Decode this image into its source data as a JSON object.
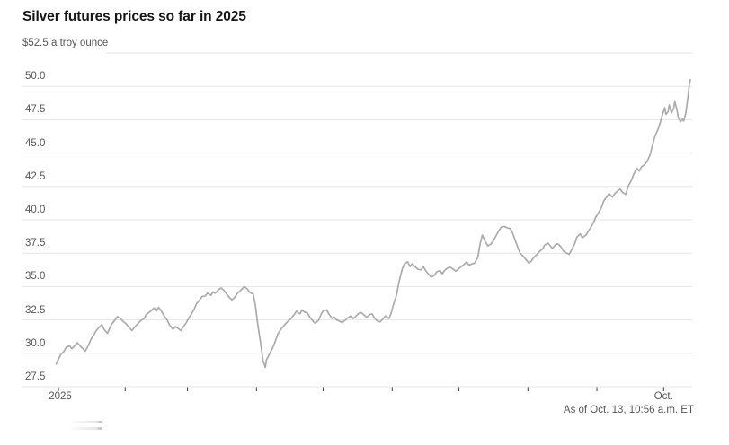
{
  "chart_data": {
    "type": "line",
    "title": "Silver futures prices so far in 2025",
    "unit_label": "$52.5 a troy ounce",
    "as_of": "As of Oct. 13, 10:56 a.m. ET",
    "ylabel": "price, $ a troy ounce",
    "ylim": [
      27.5,
      52.5
    ],
    "grid": true,
    "legend": false,
    "ytick_labels": [
      "27.5",
      "30.0",
      "32.5",
      "35.0",
      "37.5",
      "40.0",
      "42.5",
      "45.0",
      "47.5",
      "50.0"
    ],
    "ytick_top_value": 52.5,
    "x_axis": {
      "year_label": "2025",
      "end_label": "Oct.",
      "month_tick_days": [
        2,
        32,
        60,
        91,
        121,
        152,
        182,
        213,
        244,
        274
      ],
      "domain_days": [
        1,
        286
      ]
    },
    "colors": {
      "line": "#ababab",
      "grid": "#e4e4e4",
      "axis": "#dcdcdc",
      "tick": "#3c3c3c",
      "title": "#161616",
      "label": "#555555"
    },
    "series": [
      {
        "name": "Silver futures price",
        "points": [
          [
            1,
            29.2
          ],
          [
            2,
            29.55
          ],
          [
            3,
            29.9
          ],
          [
            4.5,
            30.15
          ],
          [
            5.5,
            30.45
          ],
          [
            7,
            30.55
          ],
          [
            8,
            30.35
          ],
          [
            9.5,
            30.6
          ],
          [
            10.5,
            30.8
          ],
          [
            11.5,
            30.6
          ],
          [
            13,
            30.35
          ],
          [
            14,
            30.15
          ],
          [
            15.5,
            30.6
          ],
          [
            16.5,
            31.0
          ],
          [
            18,
            31.4
          ],
          [
            19,
            31.7
          ],
          [
            20,
            31.9
          ],
          [
            21.5,
            32.15
          ],
          [
            22.5,
            31.8
          ],
          [
            24,
            31.5
          ],
          [
            25,
            31.85
          ],
          [
            26,
            32.2
          ],
          [
            27.5,
            32.5
          ],
          [
            28.5,
            32.75
          ],
          [
            30,
            32.6
          ],
          [
            31,
            32.4
          ],
          [
            32.5,
            32.2
          ],
          [
            34,
            31.9
          ],
          [
            35,
            31.7
          ],
          [
            36.5,
            32.0
          ],
          [
            37.5,
            32.2
          ],
          [
            39,
            32.45
          ],
          [
            40.5,
            32.6
          ],
          [
            41.5,
            32.9
          ],
          [
            43,
            33.1
          ],
          [
            44,
            33.25
          ],
          [
            45,
            33.4
          ],
          [
            46,
            33.15
          ],
          [
            47,
            33.45
          ],
          [
            48.5,
            33.1
          ],
          [
            49.5,
            32.8
          ],
          [
            51,
            32.45
          ],
          [
            52,
            32.1
          ],
          [
            53.5,
            31.8
          ],
          [
            54.5,
            32.0
          ],
          [
            55.5,
            31.9
          ],
          [
            57,
            31.7
          ],
          [
            58,
            31.95
          ],
          [
            59.5,
            32.3
          ],
          [
            60.5,
            32.6
          ],
          [
            62,
            33.0
          ],
          [
            63,
            33.3
          ],
          [
            64,
            33.7
          ],
          [
            65.5,
            34.0
          ],
          [
            66.5,
            34.25
          ],
          [
            68,
            34.3
          ],
          [
            69,
            34.5
          ],
          [
            70.5,
            34.35
          ],
          [
            71.5,
            34.6
          ],
          [
            72.5,
            34.5
          ],
          [
            74,
            34.75
          ],
          [
            75,
            34.9
          ],
          [
            76.5,
            34.7
          ],
          [
            77.5,
            34.45
          ],
          [
            79,
            34.15
          ],
          [
            80,
            34.0
          ],
          [
            81,
            34.15
          ],
          [
            82.5,
            34.5
          ],
          [
            83.5,
            34.65
          ],
          [
            85,
            34.9
          ],
          [
            85.5,
            35.0
          ],
          [
            87,
            34.8
          ],
          [
            88,
            34.55
          ],
          [
            89.5,
            34.45
          ],
          [
            90.5,
            33.6
          ],
          [
            91.5,
            32.3
          ],
          [
            93,
            30.6
          ],
          [
            94,
            29.4
          ],
          [
            95,
            28.95
          ],
          [
            95.5,
            29.5
          ],
          [
            97,
            30.0
          ],
          [
            98,
            30.3
          ],
          [
            99.5,
            30.9
          ],
          [
            100.5,
            31.4
          ],
          [
            102,
            31.8
          ],
          [
            103,
            32.0
          ],
          [
            104,
            32.2
          ],
          [
            105.5,
            32.45
          ],
          [
            106.5,
            32.6
          ],
          [
            108,
            32.9
          ],
          [
            109,
            33.15
          ],
          [
            110.5,
            32.95
          ],
          [
            111.5,
            33.25
          ],
          [
            112.5,
            33.1
          ],
          [
            114,
            33.0
          ],
          [
            115,
            32.7
          ],
          [
            116.5,
            32.4
          ],
          [
            117.5,
            32.25
          ],
          [
            119,
            32.5
          ],
          [
            120,
            32.9
          ],
          [
            121,
            33.2
          ],
          [
            122.5,
            33.25
          ],
          [
            123.5,
            32.95
          ],
          [
            125,
            32.6
          ],
          [
            126,
            32.7
          ],
          [
            127,
            32.5
          ],
          [
            128.5,
            32.4
          ],
          [
            129.5,
            32.3
          ],
          [
            131,
            32.5
          ],
          [
            132,
            32.65
          ],
          [
            133.5,
            32.8
          ],
          [
            134.5,
            32.6
          ],
          [
            135.5,
            32.75
          ],
          [
            137,
            33.0
          ],
          [
            138,
            33.05
          ],
          [
            139.5,
            32.85
          ],
          [
            140.5,
            32.7
          ],
          [
            142,
            32.9
          ],
          [
            143,
            32.95
          ],
          [
            144,
            32.65
          ],
          [
            145.5,
            32.4
          ],
          [
            146.5,
            32.35
          ],
          [
            148,
            32.6
          ],
          [
            149,
            32.8
          ],
          [
            150.5,
            32.6
          ],
          [
            151.5,
            33.0
          ],
          [
            152.5,
            33.6
          ],
          [
            154,
            34.4
          ],
          [
            155,
            35.3
          ],
          [
            156.5,
            36.3
          ],
          [
            157.5,
            36.7
          ],
          [
            159,
            36.85
          ],
          [
            160,
            36.5
          ],
          [
            161,
            36.7
          ],
          [
            162.5,
            36.45
          ],
          [
            163.5,
            36.3
          ],
          [
            165,
            36.25
          ],
          [
            166,
            36.5
          ],
          [
            167,
            36.2
          ],
          [
            168.5,
            35.9
          ],
          [
            169.5,
            35.7
          ],
          [
            171,
            35.85
          ],
          [
            172,
            36.1
          ],
          [
            173.5,
            36.2
          ],
          [
            174.5,
            35.95
          ],
          [
            175.5,
            36.2
          ],
          [
            177,
            36.4
          ],
          [
            178,
            36.45
          ],
          [
            179.5,
            36.3
          ],
          [
            180.5,
            36.15
          ],
          [
            182,
            36.35
          ],
          [
            183,
            36.5
          ],
          [
            184,
            36.6
          ],
          [
            185.5,
            36.85
          ],
          [
            186.5,
            36.6
          ],
          [
            188,
            36.7
          ],
          [
            189,
            36.75
          ],
          [
            190.5,
            37.2
          ],
          [
            191.5,
            38.2
          ],
          [
            192.5,
            38.85
          ],
          [
            194,
            38.3
          ],
          [
            195,
            38.05
          ],
          [
            196.5,
            38.2
          ],
          [
            197.5,
            38.45
          ],
          [
            199,
            38.9
          ],
          [
            200,
            39.2
          ],
          [
            201,
            39.45
          ],
          [
            202.5,
            39.5
          ],
          [
            203.5,
            39.4
          ],
          [
            205,
            39.35
          ],
          [
            206,
            39.05
          ],
          [
            207,
            38.6
          ],
          [
            208.5,
            37.9
          ],
          [
            209.5,
            37.5
          ],
          [
            211,
            37.25
          ],
          [
            212,
            37.05
          ],
          [
            213.5,
            36.75
          ],
          [
            214.5,
            36.9
          ],
          [
            215.5,
            37.15
          ],
          [
            217,
            37.4
          ],
          [
            218,
            37.6
          ],
          [
            219.5,
            37.8
          ],
          [
            220.5,
            38.1
          ],
          [
            222,
            38.25
          ],
          [
            223,
            38.05
          ],
          [
            224,
            37.85
          ],
          [
            225.5,
            38.15
          ],
          [
            226.5,
            38.2
          ],
          [
            228,
            37.95
          ],
          [
            229,
            37.65
          ],
          [
            230,
            37.55
          ],
          [
            231.5,
            37.4
          ],
          [
            232.5,
            37.7
          ],
          [
            234,
            38.2
          ],
          [
            235,
            38.7
          ],
          [
            236.5,
            38.95
          ],
          [
            237.5,
            38.65
          ],
          [
            239,
            38.85
          ],
          [
            240,
            39.1
          ],
          [
            241,
            39.35
          ],
          [
            242.5,
            39.8
          ],
          [
            243.5,
            40.2
          ],
          [
            245,
            40.6
          ],
          [
            246,
            40.9
          ],
          [
            247,
            41.4
          ],
          [
            248.5,
            41.75
          ],
          [
            249.5,
            41.95
          ],
          [
            251,
            41.7
          ],
          [
            252,
            41.95
          ],
          [
            253.5,
            42.2
          ],
          [
            254.5,
            42.3
          ],
          [
            255.5,
            42.05
          ],
          [
            257,
            41.9
          ],
          [
            258,
            42.5
          ],
          [
            259.5,
            42.95
          ],
          [
            260.5,
            43.4
          ],
          [
            262,
            43.85
          ],
          [
            263,
            43.65
          ],
          [
            264,
            43.95
          ],
          [
            265.5,
            44.15
          ],
          [
            266.5,
            44.35
          ],
          [
            268,
            44.9
          ],
          [
            269,
            45.6
          ],
          [
            270,
            46.2
          ],
          [
            271.5,
            46.8
          ],
          [
            272.5,
            47.3
          ],
          [
            273.5,
            47.9
          ],
          [
            274.5,
            48.4
          ],
          [
            275,
            47.9
          ],
          [
            276,
            48.1
          ],
          [
            276.5,
            48.6
          ],
          [
            277.5,
            48.0
          ],
          [
            278.5,
            48.35
          ],
          [
            279,
            48.85
          ],
          [
            280,
            48.25
          ],
          [
            280.5,
            47.7
          ],
          [
            281.5,
            47.35
          ],
          [
            282.5,
            47.55
          ],
          [
            283,
            47.4
          ],
          [
            284,
            48.0
          ],
          [
            285,
            49.3
          ],
          [
            285.5,
            50.1
          ],
          [
            286,
            50.5
          ]
        ]
      }
    ]
  }
}
